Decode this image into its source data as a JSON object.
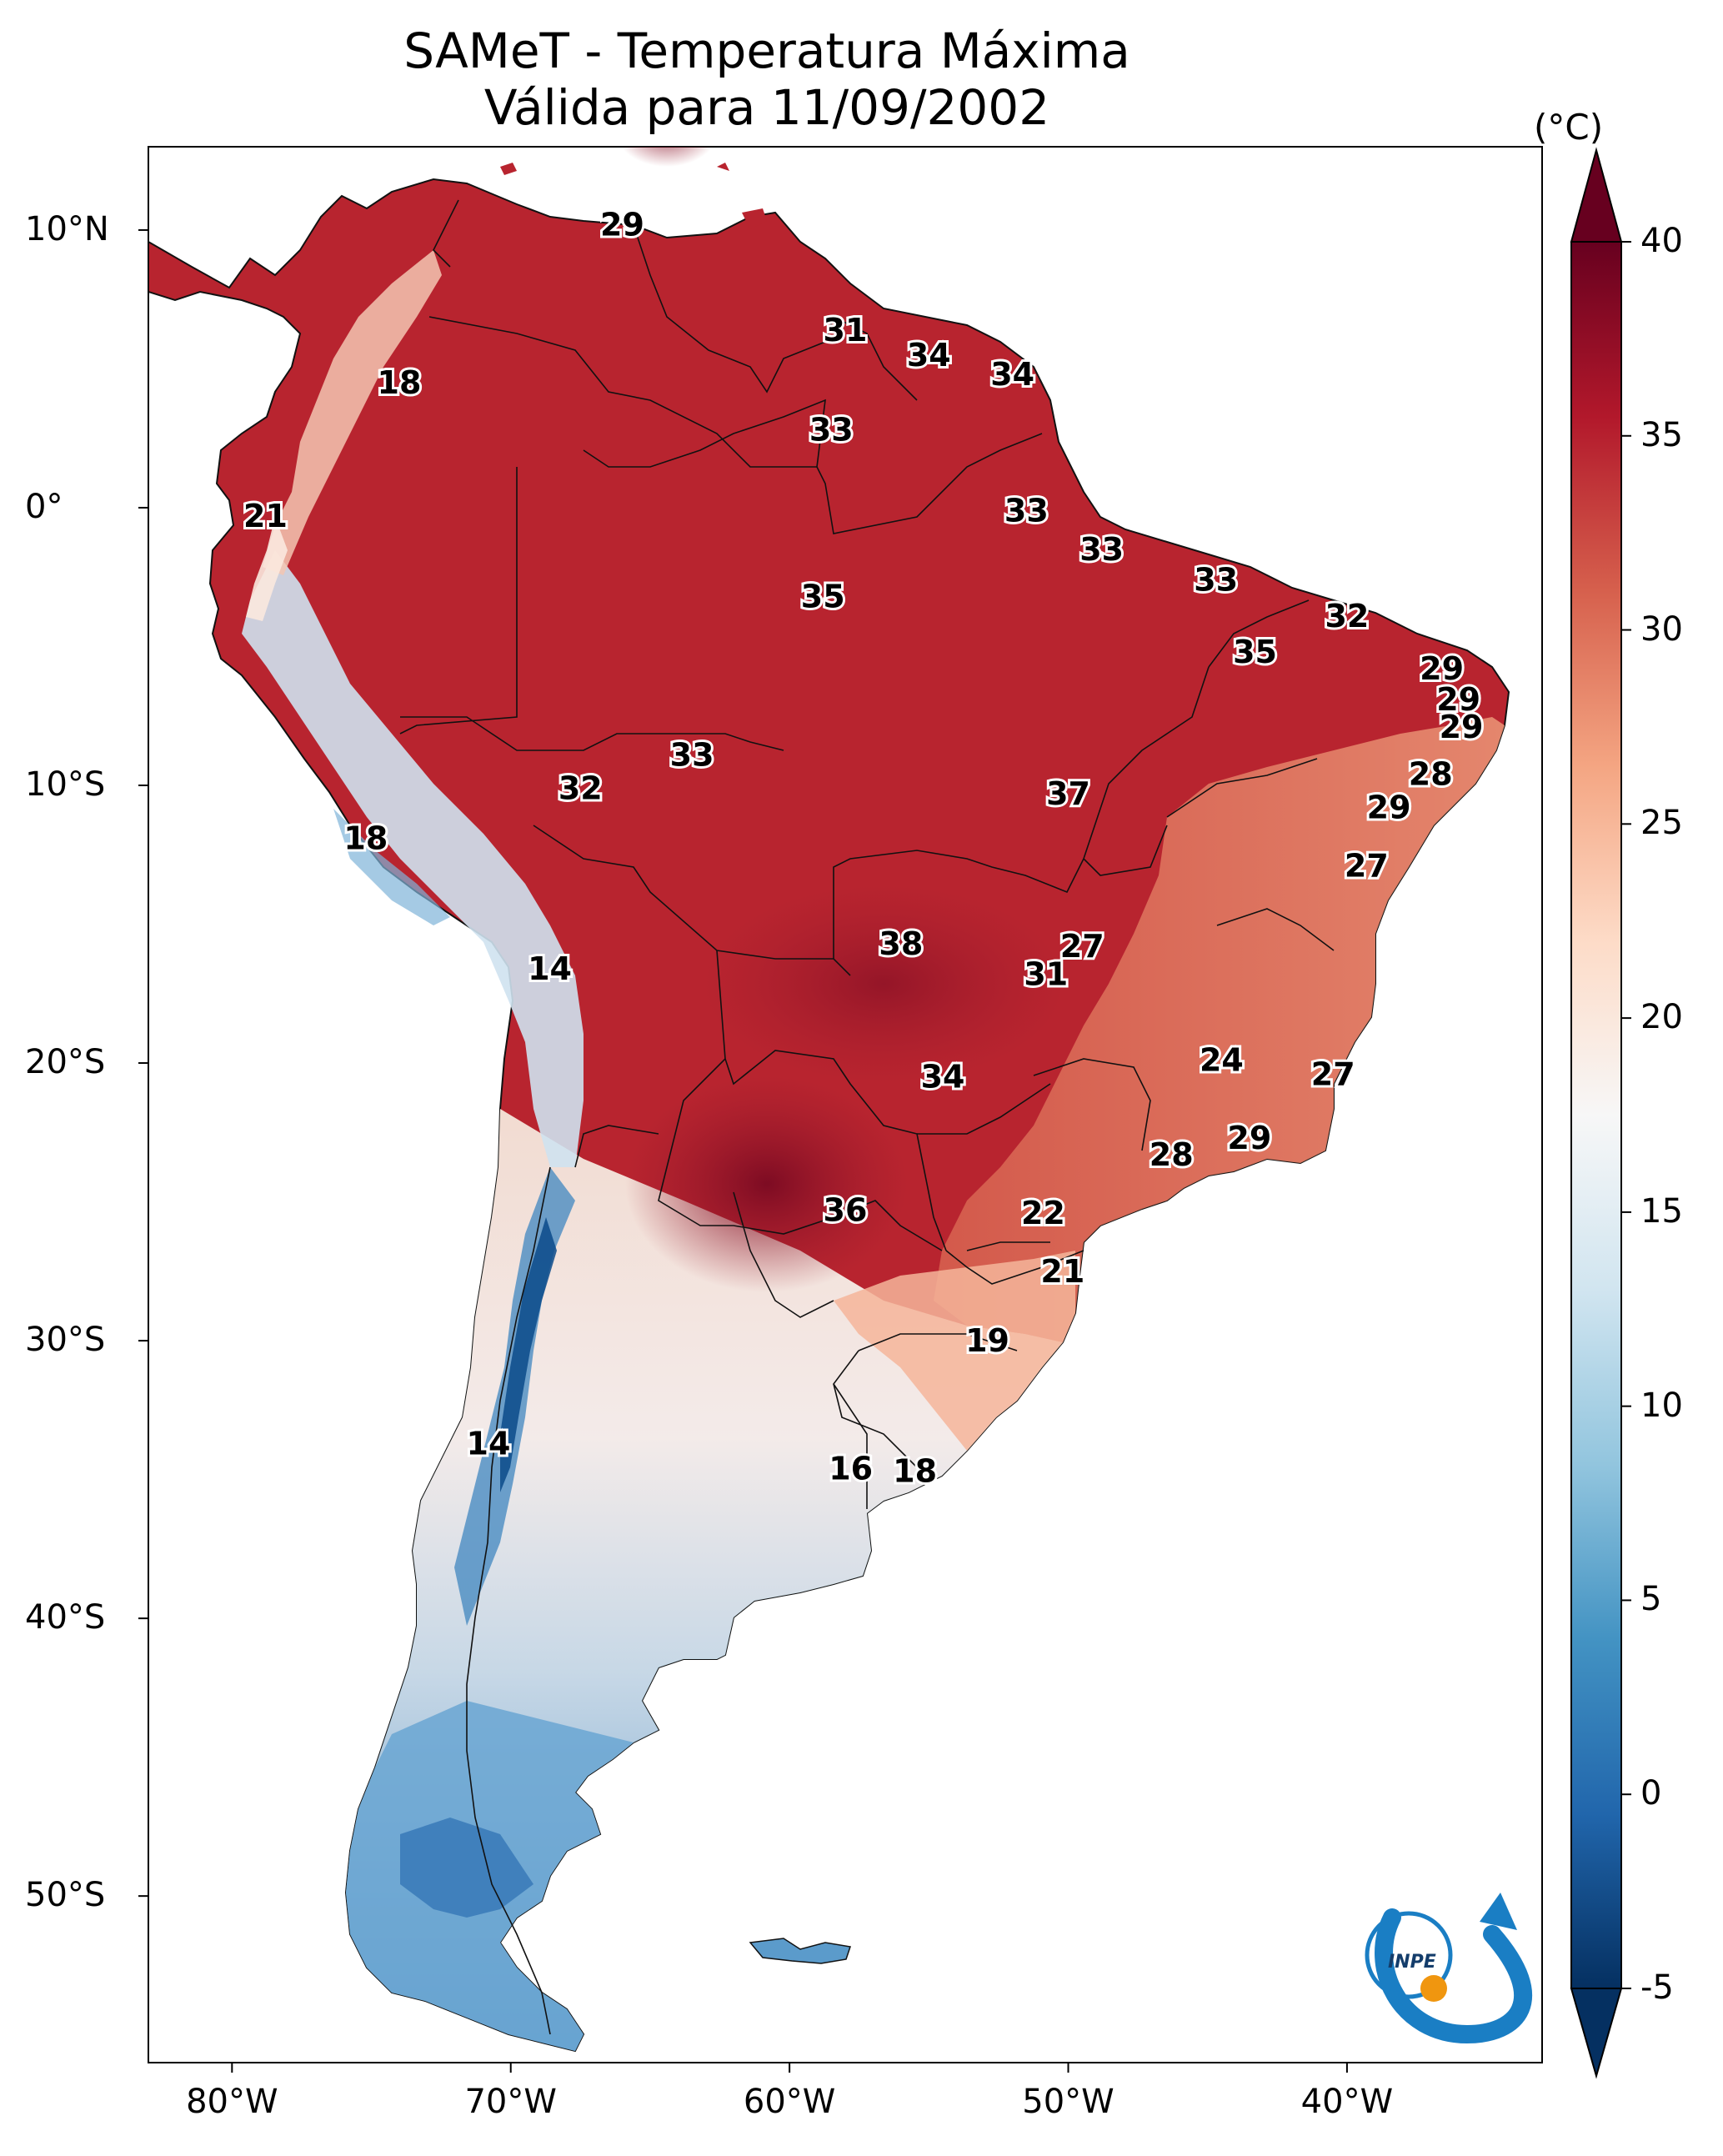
{
  "title": {
    "line1": "SAMeT - Temperatura Máxima",
    "line2": "Válida para 11/09/2002"
  },
  "axes": {
    "lat_labels": [
      "10°N",
      "0°",
      "10°S",
      "20°S",
      "30°S",
      "40°S",
      "50°S"
    ],
    "lat_values": [
      10,
      0,
      -10,
      -20,
      -30,
      -40,
      -50
    ],
    "lon_labels": [
      "80°W",
      "70°W",
      "60°W",
      "50°W",
      "40°W"
    ],
    "lon_values": [
      -80,
      -70,
      -60,
      -50,
      -40
    ],
    "lon_range": [
      -83,
      -33
    ],
    "lat_range": [
      -56,
      13
    ]
  },
  "colorbar": {
    "unit": "(°C)",
    "tick_labels": [
      "40",
      "35",
      "30",
      "25",
      "20",
      "15",
      "10",
      "5",
      "0",
      "-5"
    ],
    "tick_values": [
      40,
      35,
      30,
      25,
      20,
      15,
      10,
      5,
      0,
      -5
    ],
    "range": [
      -5,
      40
    ],
    "colors": [
      "#053061",
      "#2166ac",
      "#4393c3",
      "#92c5de",
      "#d1e5f0",
      "#f7f7f7",
      "#fddbc7",
      "#f4a582",
      "#d6604d",
      "#b2182b",
      "#67001f"
    ]
  },
  "chart_data": {
    "type": "map-annotations",
    "variable": "Temperatura Máxima",
    "unit": "°C",
    "points": [
      {
        "label": "29",
        "lon": -66,
        "lat": 10.2
      },
      {
        "label": "18",
        "lon": -74,
        "lat": 4.5
      },
      {
        "label": "31",
        "lon": -58,
        "lat": 6.4
      },
      {
        "label": "34",
        "lon": -55,
        "lat": 5.5
      },
      {
        "label": "34",
        "lon": -52,
        "lat": 4.8
      },
      {
        "label": "33",
        "lon": -58.5,
        "lat": 2.8
      },
      {
        "label": "21",
        "lon": -78.8,
        "lat": -0.3
      },
      {
        "label": "33",
        "lon": -51.5,
        "lat": -0.1
      },
      {
        "label": "33",
        "lon": -48.8,
        "lat": -1.5
      },
      {
        "label": "33",
        "lon": -44.7,
        "lat": -2.6
      },
      {
        "label": "35",
        "lon": -58.8,
        "lat": -3.2
      },
      {
        "label": "32",
        "lon": -40,
        "lat": -3.9
      },
      {
        "label": "35",
        "lon": -43.3,
        "lat": -5.2
      },
      {
        "label": "29",
        "lon": -36.6,
        "lat": -5.8
      },
      {
        "label": "29",
        "lon": -36,
        "lat": -6.9
      },
      {
        "label": "29",
        "lon": -35.9,
        "lat": -7.9
      },
      {
        "label": "33",
        "lon": -63.5,
        "lat": -8.9
      },
      {
        "label": "28",
        "lon": -37,
        "lat": -9.6
      },
      {
        "label": "32",
        "lon": -67.5,
        "lat": -10.1
      },
      {
        "label": "37",
        "lon": -50,
        "lat": -10.3
      },
      {
        "label": "29",
        "lon": -38.5,
        "lat": -10.8
      },
      {
        "label": "18",
        "lon": -75.2,
        "lat": -11.9
      },
      {
        "label": "27",
        "lon": -39.3,
        "lat": -12.9
      },
      {
        "label": "38",
        "lon": -56,
        "lat": -15.7
      },
      {
        "label": "27",
        "lon": -49.5,
        "lat": -15.8
      },
      {
        "label": "14",
        "lon": -68.6,
        "lat": -16.6
      },
      {
        "label": "31",
        "lon": -50.8,
        "lat": -16.8
      },
      {
        "label": "24",
        "lon": -44.5,
        "lat": -19.9
      },
      {
        "label": "27",
        "lon": -40.5,
        "lat": -20.4
      },
      {
        "label": "34",
        "lon": -54.5,
        "lat": -20.5
      },
      {
        "label": "29",
        "lon": -43.5,
        "lat": -22.7
      },
      {
        "label": "28",
        "lon": -46.3,
        "lat": -23.3
      },
      {
        "label": "36",
        "lon": -58,
        "lat": -25.3
      },
      {
        "label": "22",
        "lon": -50.9,
        "lat": -25.4
      },
      {
        "label": "21",
        "lon": -50.2,
        "lat": -27.5
      },
      {
        "label": "19",
        "lon": -52.9,
        "lat": -30
      },
      {
        "label": "14",
        "lon": -70.8,
        "lat": -33.7
      },
      {
        "label": "16",
        "lon": -57.8,
        "lat": -34.6
      },
      {
        "label": "18",
        "lon": -55.5,
        "lat": -34.7
      }
    ]
  },
  "logo": {
    "text": "INPE"
  }
}
